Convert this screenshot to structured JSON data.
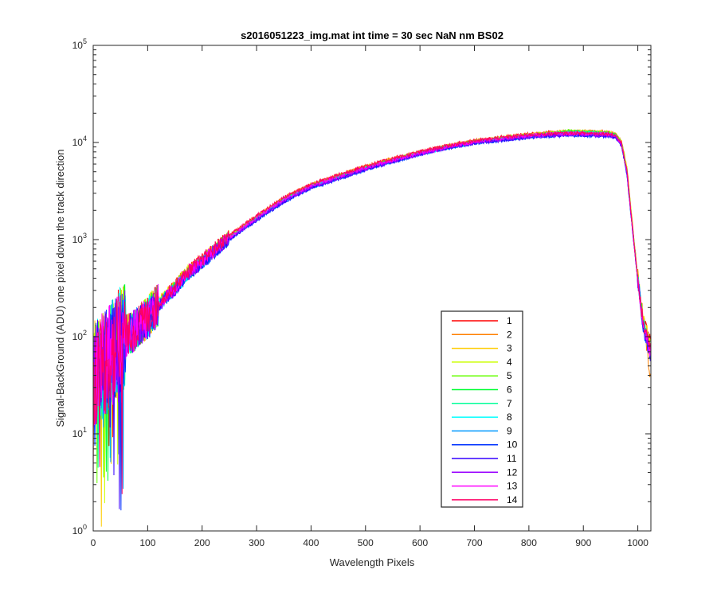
{
  "chart_data": {
    "type": "line",
    "title": "s2016051223_img.mat int time = 30 sec  NaN nm BS02",
    "xlabel": "Wavelength Pixels",
    "ylabel": "Signal-BackGround (ADU) one pixel down the track direction",
    "xlim": [
      0,
      1024
    ],
    "ylim": [
      1,
      100000
    ],
    "yscale": "log",
    "grid": false,
    "legend_position": "lower-right",
    "x_ticks": [
      0,
      100,
      200,
      300,
      400,
      500,
      600,
      700,
      800,
      900,
      1000
    ],
    "x_tick_labels": [
      "0",
      "100",
      "200",
      "300",
      "400",
      "500",
      "600",
      "700",
      "800",
      "900",
      "1000"
    ],
    "y_ticks": [
      1,
      10,
      100,
      1000,
      10000,
      100000
    ],
    "y_tick_labels": [
      {
        "base": "10",
        "exp": "0"
      },
      {
        "base": "10",
        "exp": "1"
      },
      {
        "base": "10",
        "exp": "2"
      },
      {
        "base": "10",
        "exp": "3"
      },
      {
        "base": "10",
        "exp": "4"
      },
      {
        "base": "10",
        "exp": "5"
      }
    ],
    "x": [
      0,
      25,
      50,
      75,
      100,
      125,
      150,
      175,
      200,
      250,
      300,
      350,
      400,
      450,
      500,
      550,
      600,
      650,
      700,
      750,
      800,
      850,
      875,
      900,
      925,
      950,
      960,
      970,
      980,
      990,
      1000,
      1010,
      1023
    ],
    "series": [
      {
        "name": "1",
        "color": "#ff0000",
        "values": [
          40,
          55,
          95,
          115,
          160,
          240,
          330,
          480,
          620,
          1100,
          1750,
          2700,
          3700,
          4600,
          5700,
          6800,
          8000,
          9300,
          10500,
          11300,
          12200,
          12800,
          13000,
          13000,
          12900,
          12700,
          12000,
          10000,
          5200,
          1400,
          400,
          140,
          90
        ]
      },
      {
        "name": "2",
        "color": "#ff7f00",
        "values": [
          40,
          55,
          95,
          115,
          160,
          240,
          330,
          480,
          615,
          1090,
          1730,
          2680,
          3680,
          4570,
          5650,
          6750,
          7950,
          9200,
          10400,
          11200,
          12100,
          12700,
          12900,
          12900,
          12800,
          12600,
          12000,
          10200,
          5600,
          1500,
          420,
          150,
          40
        ]
      },
      {
        "name": "3",
        "color": "#ffcc00",
        "values": [
          40,
          55,
          95,
          115,
          160,
          240,
          325,
          475,
          610,
          1080,
          1720,
          2650,
          3650,
          4530,
          5600,
          6700,
          7900,
          9150,
          10300,
          11100,
          12000,
          12700,
          12900,
          12900,
          12800,
          12600,
          12000,
          10100,
          5500,
          1450,
          410,
          145,
          85
        ]
      },
      {
        "name": "4",
        "color": "#ccff00",
        "values": [
          40,
          55,
          95,
          115,
          160,
          235,
          325,
          470,
          605,
          1070,
          1700,
          2630,
          3620,
          4500,
          5550,
          6650,
          7850,
          9100,
          10250,
          11050,
          11950,
          12600,
          13000,
          12900,
          12750,
          12500,
          11900,
          10000,
          5300,
          1400,
          400,
          140,
          80
        ]
      },
      {
        "name": "5",
        "color": "#66ff00",
        "values": [
          40,
          55,
          95,
          115,
          160,
          235,
          320,
          465,
          600,
          1060,
          1680,
          2600,
          3580,
          4450,
          5500,
          6600,
          7800,
          9050,
          10200,
          11000,
          11900,
          12500,
          13200,
          12900,
          12700,
          12400,
          11800,
          9900,
          5200,
          1380,
          395,
          138,
          78
        ]
      },
      {
        "name": "6",
        "color": "#00ff33",
        "values": [
          40,
          55,
          95,
          115,
          155,
          230,
          318,
          460,
          595,
          1050,
          1660,
          2570,
          3550,
          4400,
          5450,
          6550,
          7750,
          9000,
          10100,
          10900,
          11800,
          12400,
          12900,
          12800,
          12600,
          12300,
          11700,
          9800,
          5100,
          1360,
          390,
          135,
          75
        ]
      },
      {
        "name": "7",
        "color": "#00ff99",
        "values": [
          40,
          55,
          95,
          115,
          155,
          230,
          315,
          455,
          590,
          1040,
          1640,
          2540,
          3520,
          4350,
          5400,
          6500,
          7700,
          8900,
          10000,
          10800,
          11700,
          12300,
          12700,
          12600,
          12500,
          12200,
          11600,
          9700,
          5000,
          1340,
          385,
          132,
          72
        ]
      },
      {
        "name": "8",
        "color": "#00ffff",
        "values": [
          40,
          55,
          95,
          115,
          155,
          225,
          312,
          450,
          585,
          1030,
          1620,
          2510,
          3480,
          4300,
          5350,
          6450,
          7650,
          8850,
          9950,
          10700,
          11600,
          12200,
          12500,
          12500,
          12400,
          12100,
          11500,
          9600,
          4900,
          1320,
          380,
          130,
          70
        ]
      },
      {
        "name": "9",
        "color": "#0099ff",
        "values": [
          40,
          55,
          95,
          115,
          150,
          225,
          310,
          445,
          580,
          1020,
          1600,
          2480,
          3450,
          4250,
          5300,
          6400,
          7600,
          8800,
          9900,
          10600,
          11500,
          12100,
          12300,
          12300,
          12300,
          12000,
          11400,
          9500,
          4800,
          1300,
          375,
          128,
          68
        ]
      },
      {
        "name": "10",
        "color": "#0033ff",
        "values": [
          40,
          55,
          95,
          115,
          150,
          220,
          305,
          440,
          570,
          1000,
          1580,
          2450,
          3400,
          4200,
          5250,
          6350,
          7550,
          8750,
          9850,
          10500,
          11300,
          11700,
          11800,
          11800,
          11700,
          11600,
          11100,
          9300,
          4700,
          1280,
          370,
          125,
          66
        ]
      },
      {
        "name": "11",
        "color": "#3300ff",
        "values": [
          40,
          55,
          95,
          115,
          150,
          220,
          305,
          440,
          575,
          1010,
          1590,
          2460,
          3420,
          4220,
          5270,
          6370,
          7570,
          8770,
          9870,
          10550,
          11400,
          11800,
          11900,
          11900,
          11800,
          11700,
          11200,
          9400,
          4750,
          1290,
          372,
          126,
          67
        ]
      },
      {
        "name": "12",
        "color": "#9900ff",
        "values": [
          40,
          55,
          95,
          115,
          155,
          225,
          310,
          450,
          585,
          1030,
          1620,
          2500,
          3470,
          4280,
          5330,
          6420,
          7620,
          8820,
          9920,
          10650,
          11500,
          11900,
          12000,
          12000,
          11900,
          11800,
          11300,
          9500,
          4800,
          1300,
          375,
          128,
          68
        ]
      },
      {
        "name": "13",
        "color": "#ff00ff",
        "values": [
          40,
          55,
          95,
          115,
          160,
          235,
          320,
          465,
          600,
          1060,
          1680,
          2600,
          3580,
          4450,
          5500,
          6600,
          7800,
          9050,
          10200,
          11000,
          11850,
          12300,
          12400,
          12400,
          12300,
          12200,
          11600,
          9700,
          5000,
          1340,
          385,
          132,
          72
        ]
      },
      {
        "name": "14",
        "color": "#ff0066",
        "values": [
          40,
          55,
          95,
          115,
          165,
          240,
          330,
          480,
          625,
          1110,
          1760,
          2720,
          3720,
          4620,
          5720,
          6820,
          8020,
          9250,
          10400,
          11200,
          12000,
          12400,
          12500,
          12500,
          12400,
          12300,
          11700,
          9800,
          5100,
          1360,
          390,
          135,
          75
        ]
      }
    ]
  }
}
